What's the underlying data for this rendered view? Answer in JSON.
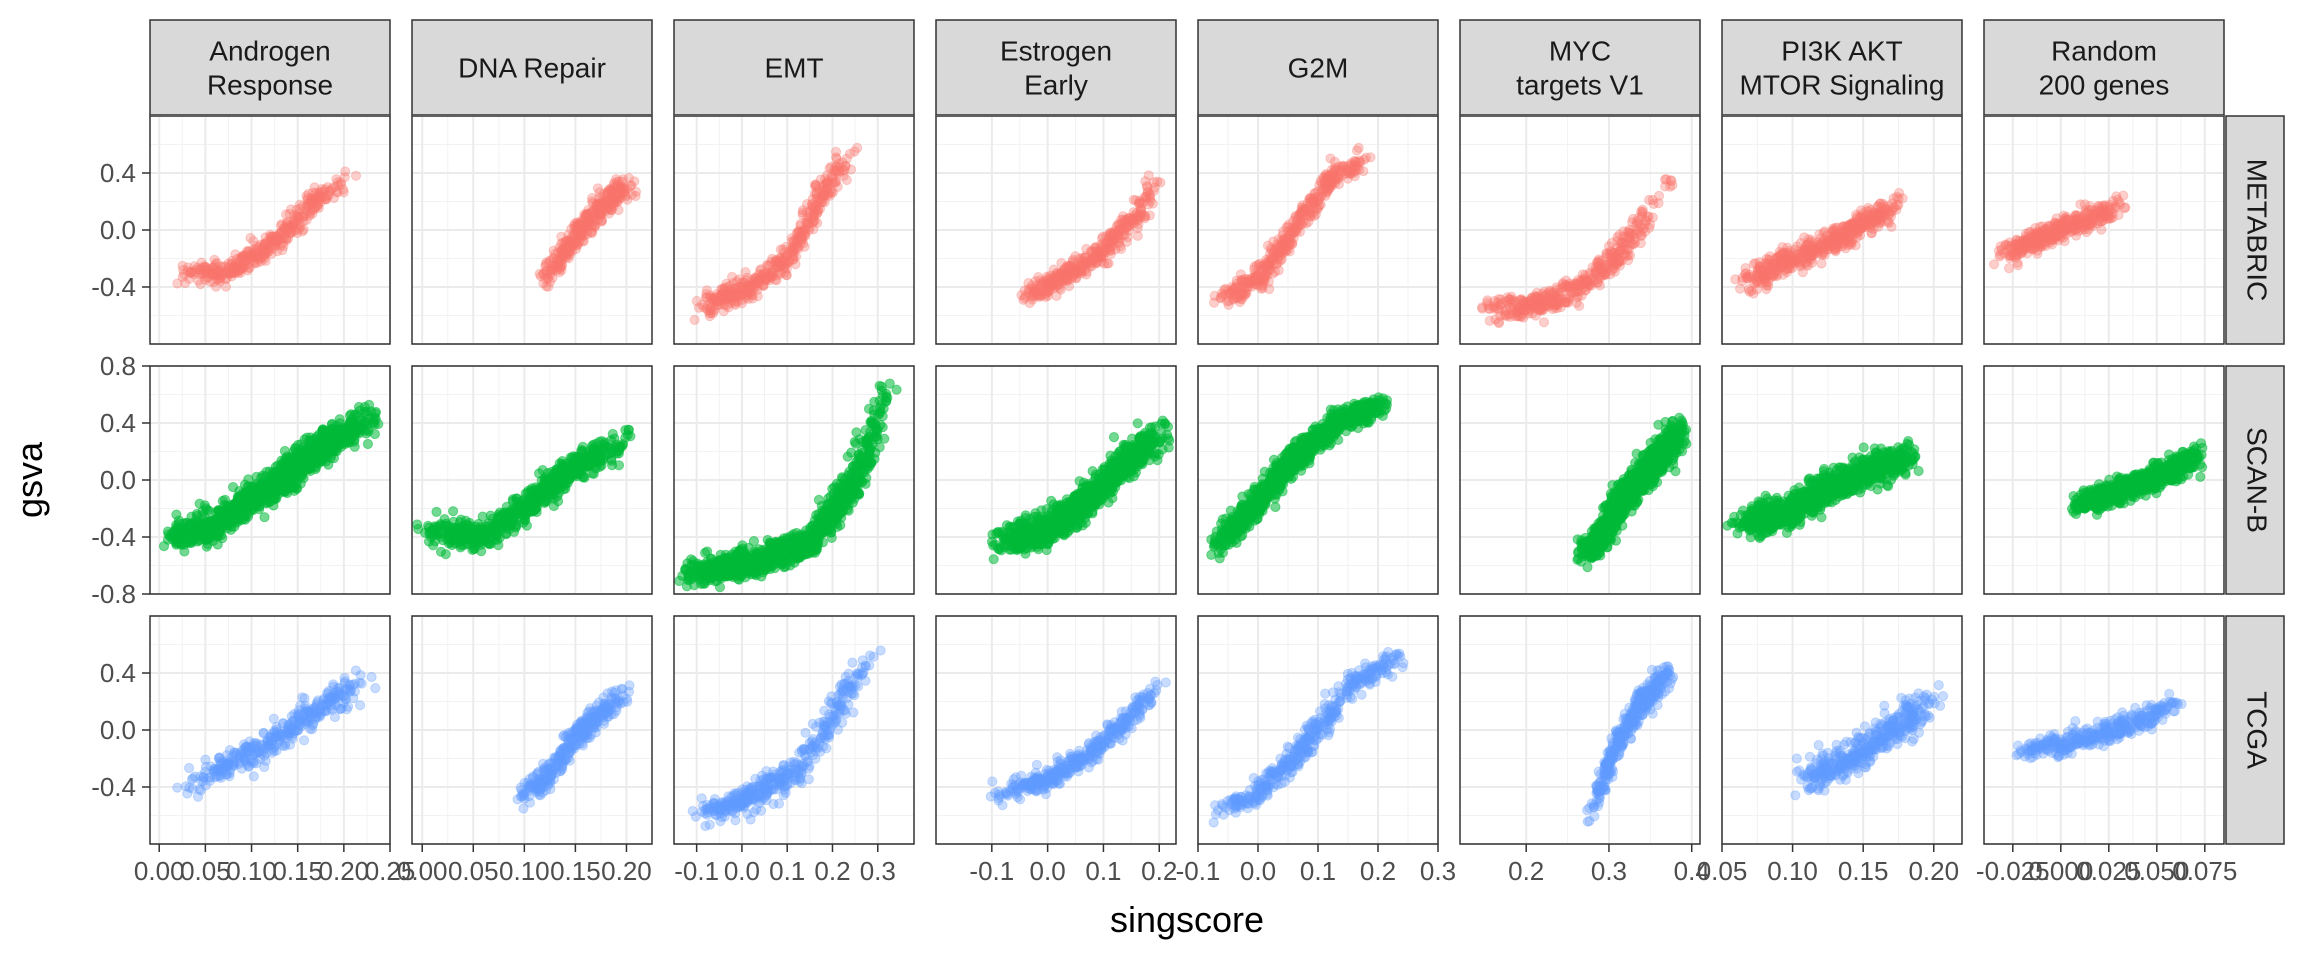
{
  "chart_data": {
    "type": "scatter",
    "title": "",
    "xlabel": "singscore",
    "ylabel": "gsva",
    "legend": "none",
    "grid": true,
    "columns": [
      "Androgen\nResponse",
      "DNA Repair",
      "EMT",
      "Estrogen\nEarly",
      "G2M",
      "MYC\ntargets V1",
      "PI3K AKT\nMTOR Signaling",
      "Random\n200 genes"
    ],
    "rows": [
      "METABRIC",
      "SCAN-B",
      "TCGA"
    ],
    "row_colors": [
      "#F8766D",
      "#00BA38",
      "#619CFF"
    ],
    "y_ticks": [
      [
        "-0.4",
        "0.0",
        "0.4"
      ],
      [
        "-0.8",
        "-0.4",
        "0.0",
        "0.4",
        "0.8"
      ],
      [
        "-0.4",
        "0.0",
        "0.4"
      ]
    ],
    "y_tick_values": [
      [
        -0.4,
        0.0,
        0.4
      ],
      [
        -0.8,
        -0.4,
        0.0,
        0.4,
        0.8
      ],
      [
        -0.4,
        0.0,
        0.4
      ]
    ],
    "ylim": [
      -0.8,
      0.8
    ],
    "x_axes": [
      {
        "xlim": [
          -0.01,
          0.25
        ],
        "ticks": [
          0.0,
          0.05,
          0.1,
          0.15,
          0.2,
          0.25
        ],
        "labels": [
          "0.00",
          "0.05",
          "0.10",
          "0.15",
          "0.20",
          "0.25"
        ]
      },
      {
        "xlim": [
          -0.01,
          0.225
        ],
        "ticks": [
          0.0,
          0.05,
          0.1,
          0.15,
          0.2
        ],
        "labels": [
          "0.00",
          "0.05",
          "0.10",
          "0.15",
          "0.20"
        ]
      },
      {
        "xlim": [
          -0.15,
          0.38
        ],
        "ticks": [
          -0.1,
          0.0,
          0.1,
          0.2,
          0.3
        ],
        "labels": [
          "-0.1",
          "0.0",
          "0.1",
          "0.2",
          "0.3"
        ]
      },
      {
        "xlim": [
          -0.2,
          0.23
        ],
        "ticks": [
          -0.1,
          0.0,
          0.1,
          0.2
        ],
        "labels": [
          "-0.1",
          "0.0",
          "0.1",
          "0.2"
        ]
      },
      {
        "xlim": [
          -0.1,
          0.3
        ],
        "ticks": [
          -0.1,
          0.0,
          0.1,
          0.2,
          0.3
        ],
        "labels": [
          "-0.1",
          "0.0",
          "0.1",
          "0.2",
          "0.3"
        ]
      },
      {
        "xlim": [
          0.12,
          0.41
        ],
        "ticks": [
          0.2,
          0.3,
          0.4
        ],
        "labels": [
          "0.2",
          "0.3",
          "0.4"
        ]
      },
      {
        "xlim": [
          0.05,
          0.22
        ],
        "ticks": [
          0.05,
          0.1,
          0.15,
          0.2
        ],
        "labels": [
          "0.05",
          "0.10",
          "0.15",
          "0.20"
        ]
      },
      {
        "xlim": [
          -0.04,
          0.085
        ],
        "ticks": [
          -0.025,
          0.0,
          0.025,
          0.05,
          0.075
        ],
        "labels": [
          "-0.025",
          "0.000",
          "0.025",
          "0.050",
          "0.075"
        ]
      }
    ],
    "panels": [
      [
        {
          "ctrl": [
            [
              0.02,
              -0.3
            ],
            [
              0.07,
              -0.3
            ],
            [
              0.12,
              -0.12
            ],
            [
              0.16,
              0.15
            ],
            [
              0.2,
              0.35
            ]
          ],
          "spread": 0.05,
          "n": 380,
          "xmin": 0.02,
          "xmax": 0.205
        },
        {
          "ctrl": [
            [
              0.115,
              -0.38
            ],
            [
              0.14,
              -0.15
            ],
            [
              0.16,
              0.05
            ],
            [
              0.19,
              0.25
            ],
            [
              0.21,
              0.32
            ]
          ],
          "spread": 0.06,
          "n": 380,
          "xmin": 0.115,
          "xmax": 0.21
        },
        {
          "ctrl": [
            [
              -0.12,
              -0.57
            ],
            [
              0.0,
              -0.45
            ],
            [
              0.1,
              -0.2
            ],
            [
              0.18,
              0.25
            ],
            [
              0.25,
              0.62
            ]
          ],
          "spread": 0.06,
          "n": 420,
          "xmin": -0.12,
          "xmax": 0.25
        },
        {
          "ctrl": [
            [
              -0.06,
              -0.5
            ],
            [
              0.02,
              -0.35
            ],
            [
              0.1,
              -0.15
            ],
            [
              0.16,
              0.1
            ],
            [
              0.2,
              0.38
            ]
          ],
          "spread": 0.05,
          "n": 380,
          "xmin": -0.06,
          "xmax": 0.205
        },
        {
          "ctrl": [
            [
              -0.07,
              -0.52
            ],
            [
              0.0,
              -0.35
            ],
            [
              0.06,
              0.0
            ],
            [
              0.12,
              0.35
            ],
            [
              0.19,
              0.54
            ]
          ],
          "spread": 0.05,
          "n": 420,
          "xmin": -0.07,
          "xmax": 0.19
        },
        {
          "ctrl": [
            [
              0.14,
              -0.57
            ],
            [
              0.22,
              -0.52
            ],
            [
              0.28,
              -0.35
            ],
            [
              0.33,
              -0.05
            ],
            [
              0.37,
              0.35
            ]
          ],
          "spread": 0.06,
          "n": 420,
          "xmin": 0.14,
          "xmax": 0.375
        },
        {
          "ctrl": [
            [
              0.06,
              -0.4
            ],
            [
              0.09,
              -0.25
            ],
            [
              0.12,
              -0.12
            ],
            [
              0.15,
              0.05
            ],
            [
              0.18,
              0.2
            ]
          ],
          "spread": 0.06,
          "n": 520,
          "xmin": 0.06,
          "xmax": 0.18
        },
        {
          "ctrl": [
            [
              -0.035,
              -0.2
            ],
            [
              -0.015,
              -0.08
            ],
            [
              0.0,
              0.0
            ],
            [
              0.015,
              0.08
            ],
            [
              0.035,
              0.2
            ]
          ],
          "spread": 0.05,
          "n": 380,
          "xmin": -0.035,
          "xmax": 0.035
        }
      ],
      [
        {
          "ctrl": [
            [
              0.0,
              -0.42
            ],
            [
              0.06,
              -0.32
            ],
            [
              0.12,
              -0.05
            ],
            [
              0.18,
              0.25
            ],
            [
              0.24,
              0.48
            ]
          ],
          "spread": 0.07,
          "n": 1100,
          "xmin": 0.0,
          "xmax": 0.24
        },
        {
          "ctrl": [
            [
              -0.005,
              -0.35
            ],
            [
              0.06,
              -0.4
            ],
            [
              0.1,
              -0.2
            ],
            [
              0.15,
              0.1
            ],
            [
              0.21,
              0.32
            ]
          ],
          "spread": 0.06,
          "n": 700,
          "xmin": -0.005,
          "xmax": 0.21
        },
        {
          "ctrl": [
            [
              -0.14,
              -0.68
            ],
            [
              0.0,
              -0.6
            ],
            [
              0.15,
              -0.45
            ],
            [
              0.25,
              0.0
            ],
            [
              0.33,
              0.68
            ]
          ],
          "spread": 0.06,
          "n": 1200,
          "xmin": -0.14,
          "xmax": 0.34
        },
        {
          "ctrl": [
            [
              -0.1,
              -0.45
            ],
            [
              0.0,
              -0.35
            ],
            [
              0.1,
              -0.05
            ],
            [
              0.16,
              0.2
            ],
            [
              0.21,
              0.35
            ]
          ],
          "spread": 0.07,
          "n": 1100,
          "xmin": -0.1,
          "xmax": 0.215
        },
        {
          "ctrl": [
            [
              -0.09,
              -0.55
            ],
            [
              -0.02,
              -0.25
            ],
            [
              0.06,
              0.15
            ],
            [
              0.14,
              0.42
            ],
            [
              0.22,
              0.56
            ]
          ],
          "spread": 0.05,
          "n": 1000,
          "xmin": -0.09,
          "xmax": 0.22
        },
        {
          "ctrl": [
            [
              0.26,
              -0.55
            ],
            [
              0.29,
              -0.4
            ],
            [
              0.32,
              -0.1
            ],
            [
              0.36,
              0.15
            ],
            [
              0.395,
              0.38
            ]
          ],
          "spread": 0.08,
          "n": 1100,
          "xmin": 0.26,
          "xmax": 0.395
        },
        {
          "ctrl": [
            [
              0.055,
              -0.3
            ],
            [
              0.09,
              -0.25
            ],
            [
              0.12,
              -0.1
            ],
            [
              0.15,
              0.05
            ],
            [
              0.19,
              0.2
            ]
          ],
          "spread": 0.07,
          "n": 1000,
          "xmin": 0.055,
          "xmax": 0.19
        },
        {
          "ctrl": [
            [
              0.005,
              -0.2
            ],
            [
              0.025,
              -0.1
            ],
            [
              0.04,
              -0.03
            ],
            [
              0.055,
              0.05
            ],
            [
              0.075,
              0.2
            ]
          ],
          "spread": 0.05,
          "n": 900,
          "xmin": 0.005,
          "xmax": 0.075
        }
      ],
      [
        {
          "ctrl": [
            [
              0.02,
              -0.42
            ],
            [
              0.07,
              -0.25
            ],
            [
              0.12,
              -0.1
            ],
            [
              0.16,
              0.1
            ],
            [
              0.22,
              0.35
            ]
          ],
          "spread": 0.06,
          "n": 350,
          "xmin": 0.02,
          "xmax": 0.225
        },
        {
          "ctrl": [
            [
              0.09,
              -0.48
            ],
            [
              0.12,
              -0.35
            ],
            [
              0.15,
              -0.05
            ],
            [
              0.18,
              0.15
            ],
            [
              0.205,
              0.28
            ]
          ],
          "spread": 0.06,
          "n": 350,
          "xmin": 0.09,
          "xmax": 0.205
        },
        {
          "ctrl": [
            [
              -0.12,
              -0.62
            ],
            [
              0.0,
              -0.5
            ],
            [
              0.12,
              -0.3
            ],
            [
              0.22,
              0.2
            ],
            [
              0.31,
              0.63
            ]
          ],
          "spread": 0.06,
          "n": 400,
          "xmin": -0.12,
          "xmax": 0.31
        },
        {
          "ctrl": [
            [
              -0.1,
              -0.46
            ],
            [
              0.0,
              -0.35
            ],
            [
              0.08,
              -0.15
            ],
            [
              0.15,
              0.1
            ],
            [
              0.21,
              0.35
            ]
          ],
          "spread": 0.05,
          "n": 380,
          "xmin": -0.1,
          "xmax": 0.21
        },
        {
          "ctrl": [
            [
              -0.08,
              -0.6
            ],
            [
              0.0,
              -0.45
            ],
            [
              0.08,
              -0.1
            ],
            [
              0.15,
              0.3
            ],
            [
              0.25,
              0.55
            ]
          ],
          "spread": 0.05,
          "n": 400,
          "xmin": -0.08,
          "xmax": 0.25
        },
        {
          "ctrl": [
            [
              0.275,
              -0.65
            ],
            [
              0.29,
              -0.4
            ],
            [
              0.31,
              -0.1
            ],
            [
              0.34,
              0.2
            ],
            [
              0.375,
              0.38
            ]
          ],
          "spread": 0.07,
          "n": 400,
          "xmin": 0.275,
          "xmax": 0.38
        },
        {
          "ctrl": [
            [
              0.1,
              -0.35
            ],
            [
              0.12,
              -0.3
            ],
            [
              0.14,
              -0.2
            ],
            [
              0.17,
              0.0
            ],
            [
              0.2,
              0.2
            ]
          ],
          "spread": 0.08,
          "n": 400,
          "xmin": 0.1,
          "xmax": 0.205
        },
        {
          "ctrl": [
            [
              -0.025,
              -0.15
            ],
            [
              0.0,
              -0.1
            ],
            [
              0.02,
              -0.03
            ],
            [
              0.04,
              0.05
            ],
            [
              0.06,
              0.2
            ]
          ],
          "spread": 0.05,
          "n": 350,
          "xmin": -0.025,
          "xmax": 0.065
        }
      ]
    ]
  }
}
